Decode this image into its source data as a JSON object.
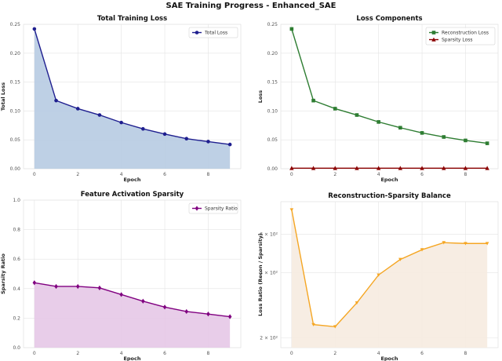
{
  "figure_title": "SAE Training Progress - Enhanced_SAE",
  "chart_data": [
    {
      "type": "area",
      "title": "Total Training Loss",
      "xlabel": "Epoch",
      "ylabel": "Total Loss",
      "x": [
        0,
        1,
        2,
        3,
        4,
        5,
        6,
        7,
        8,
        9
      ],
      "xlim": [
        -0.5,
        9.5
      ],
      "ylim": [
        0.0,
        0.25
      ],
      "yticks": [
        0.0,
        0.05,
        0.1,
        0.15,
        0.2,
        0.25
      ],
      "ytick_labels": [
        "0.00",
        "0.05",
        "0.10",
        "0.15",
        "0.20",
        "0.25"
      ],
      "xticks": [
        0,
        2,
        4,
        6,
        8
      ],
      "xtick_labels": [
        "0",
        "2",
        "4",
        "6",
        "8"
      ],
      "grid": true,
      "legend_position": "top-right",
      "series": [
        {
          "name": "Total Loss",
          "color": "#1f1f8f",
          "fill": "#b7cbe2",
          "marker": "circle",
          "values": [
            0.242,
            0.118,
            0.104,
            0.093,
            0.08,
            0.069,
            0.06,
            0.052,
            0.047,
            0.042
          ]
        }
      ]
    },
    {
      "type": "line",
      "title": "Loss Components",
      "xlabel": "Epoch",
      "ylabel": "Loss",
      "x": [
        0,
        1,
        2,
        3,
        4,
        5,
        6,
        7,
        8,
        9
      ],
      "xlim": [
        -0.5,
        9.5
      ],
      "ylim": [
        0.0,
        0.25
      ],
      "yticks": [
        0.0,
        0.05,
        0.1,
        0.15,
        0.2,
        0.25
      ],
      "ytick_labels": [
        "0.00",
        "0.05",
        "0.10",
        "0.15",
        "0.20",
        "0.25"
      ],
      "xticks": [
        0,
        2,
        4,
        6,
        8
      ],
      "xtick_labels": [
        "0",
        "2",
        "4",
        "6",
        "8"
      ],
      "grid": true,
      "legend_position": "top-right",
      "series": [
        {
          "name": "Reconstruction Loss",
          "color": "#2e7d32",
          "marker": "square",
          "values": [
            0.242,
            0.118,
            0.104,
            0.093,
            0.081,
            0.071,
            0.062,
            0.055,
            0.049,
            0.044
          ]
        },
        {
          "name": "Sparsity Loss",
          "color": "#8b0000",
          "marker": "triangle",
          "values": [
            0.001,
            0.001,
            0.001,
            0.001,
            0.001,
            0.001,
            0.001,
            0.001,
            0.001,
            0.001
          ]
        }
      ]
    },
    {
      "type": "area",
      "title": "Feature Activation Sparsity",
      "xlabel": "Epoch",
      "ylabel": "Sparsity Ratio",
      "x": [
        0,
        1,
        2,
        3,
        4,
        5,
        6,
        7,
        8,
        9
      ],
      "xlim": [
        -0.5,
        9.5
      ],
      "ylim": [
        0.0,
        1.0
      ],
      "yticks": [
        0.0,
        0.2,
        0.4,
        0.6,
        0.8,
        1.0
      ],
      "ytick_labels": [
        "0.0",
        "0.2",
        "0.4",
        "0.6",
        "0.8",
        "1.0"
      ],
      "xticks": [
        0,
        2,
        4,
        6,
        8
      ],
      "xtick_labels": [
        "0",
        "2",
        "4",
        "6",
        "8"
      ],
      "grid": true,
      "legend_position": "top-right",
      "series": [
        {
          "name": "Sparsity Ratio",
          "color": "#800080",
          "fill": "#e5c8e7",
          "marker": "diamond",
          "values": [
            0.44,
            0.415,
            0.415,
            0.405,
            0.36,
            0.315,
            0.275,
            0.245,
            0.228,
            0.21
          ]
        }
      ]
    },
    {
      "type": "area",
      "title": "Reconstruction-Sparsity Balance",
      "xlabel": "Epoch",
      "ylabel": "Loss Ratio (Recon / Sparsity)",
      "yscale": "log",
      "x": [
        0,
        1,
        2,
        3,
        4,
        5,
        6,
        7,
        8,
        9
      ],
      "xlim": [
        -0.5,
        9.5
      ],
      "ylim": [
        180,
        850
      ],
      "yticks": [
        200,
        400,
        600
      ],
      "ytick_labels": [
        "2 × 10²",
        "4 × 10²",
        "6 × 10²"
      ],
      "xticks": [
        0,
        2,
        4,
        6,
        8
      ],
      "xtick_labels": [
        "0",
        "2",
        "4",
        "6",
        "8"
      ],
      "grid": true,
      "series": [
        {
          "name": "Loss Ratio",
          "color": "#f5a623",
          "fill": "#f6ebe0",
          "marker": "triangle-down",
          "values": [
            780,
            230,
            225,
            290,
            390,
            460,
            510,
            550,
            545,
            545
          ]
        }
      ]
    }
  ]
}
